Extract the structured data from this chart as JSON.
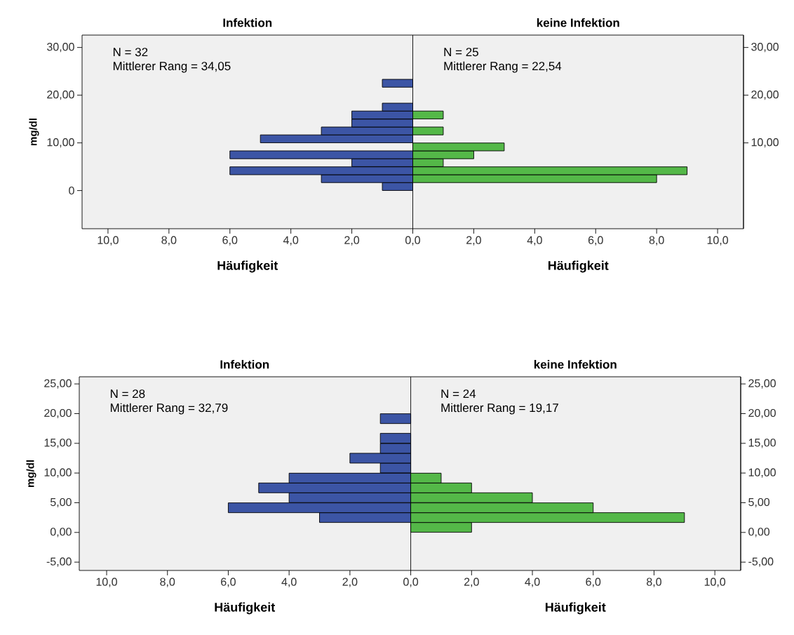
{
  "chart_data": [
    {
      "type": "bar",
      "orientation": "horizontal",
      "xlabel": "Häufigkeit",
      "ylabel": "mg/dl",
      "annotations": [
        "Infektion",
        "N = 32",
        "Mittlerer Rang = 34,05",
        "keine Infektion",
        "N = 25",
        "Mittlerer Rang = 22,54"
      ],
      "x": [
        0.85,
        2.5,
        4.15,
        5.85,
        7.5,
        9.15,
        10.85,
        12.5,
        14.15,
        15.85,
        17.5,
        19.15,
        20.85,
        22.5
      ],
      "series": [
        {
          "color": "#3c55a5",
          "values": [
            -1,
            -3,
            -6,
            -2,
            -6,
            0,
            -5,
            -3,
            -2,
            -2,
            -1,
            0,
            0,
            -1
          ]
        },
        {
          "color": "#54b848",
          "values": [
            0,
            8,
            9,
            1,
            2,
            3,
            0,
            1,
            0,
            1,
            0,
            0,
            0,
            0
          ]
        }
      ],
      "xlim": [
        -10.85,
        10.85
      ],
      "xticks": [
        {
          "value": -10,
          "label": "10,0"
        },
        {
          "value": -8,
          "label": "8,0"
        },
        {
          "value": -6,
          "label": "6,0"
        },
        {
          "value": -4,
          "label": "4,0"
        },
        {
          "value": -2,
          "label": "2,0"
        },
        {
          "value": 0,
          "label": "0,0"
        },
        {
          "value": 2,
          "label": "2,0"
        },
        {
          "value": 4,
          "label": "4,0"
        },
        {
          "value": 6,
          "label": "6,0"
        },
        {
          "value": 8,
          "label": "8,0"
        },
        {
          "value": 10,
          "label": "10,0"
        }
      ],
      "ylim": [
        -8,
        32.6
      ],
      "yticks": [
        {
          "value": 30,
          "label": "30,00"
        },
        {
          "value": 20,
          "label": "20,00"
        },
        {
          "value": 10,
          "label": "10,00"
        },
        {
          "value": 0,
          "label": "0"
        }
      ],
      "y2lim": [
        -8,
        32.6
      ],
      "y2ticks": [
        {
          "value": 30,
          "label": "30,00"
        },
        {
          "value": 20,
          "label": "20,00"
        },
        {
          "value": 10,
          "label": "10,00"
        }
      ]
    },
    {
      "type": "bar",
      "orientation": "horizontal",
      "xlabel": "Häufigkeit",
      "ylabel": "mg/dl",
      "annotations": [
        "Infektion",
        "N = 28",
        "Mittlerer Rang = 32,79",
        "keine Infektion",
        "N = 24",
        "Mittlerer Rang = 19,17"
      ],
      "x": [
        0.85,
        2.5,
        4.15,
        5.85,
        7.5,
        9.15,
        10.85,
        12.5,
        14.15,
        15.85,
        17.5,
        19.15
      ],
      "series": [
        {
          "color": "#3c55a5",
          "values": [
            0,
            -3,
            -6,
            -4,
            -5,
            -4,
            -1,
            -2,
            -1,
            -1,
            0,
            -1
          ]
        },
        {
          "color": "#54b848",
          "values": [
            2,
            9,
            6,
            4,
            2,
            1,
            0,
            0,
            0,
            0,
            0,
            0
          ]
        }
      ],
      "xlim": [
        -10.9,
        10.85
      ],
      "xticks": [
        {
          "value": -10,
          "label": "10,0"
        },
        {
          "value": -8,
          "label": "8,0"
        },
        {
          "value": -6,
          "label": "6,0"
        },
        {
          "value": -4,
          "label": "4,0"
        },
        {
          "value": -2,
          "label": "2,0"
        },
        {
          "value": 0,
          "label": "0,0"
        },
        {
          "value": 2,
          "label": "2,0"
        },
        {
          "value": 4,
          "label": "4,0"
        },
        {
          "value": 6,
          "label": "6,0"
        },
        {
          "value": 8,
          "label": "8,0"
        },
        {
          "value": 10,
          "label": "10,0"
        }
      ],
      "ylim": [
        -6.4,
        26.2
      ],
      "yticks": [
        {
          "value": 25,
          "label": "25,00"
        },
        {
          "value": 20,
          "label": "20,00"
        },
        {
          "value": 15,
          "label": "15,00"
        },
        {
          "value": 10,
          "label": "10,00"
        },
        {
          "value": 5,
          "label": "5,00"
        },
        {
          "value": 0,
          "label": "0,00"
        },
        {
          "value": -5,
          "label": "-5,00"
        }
      ],
      "y2lim": [
        -6.4,
        26.2
      ],
      "y2ticks": [
        {
          "value": 25,
          "label": "25,00"
        },
        {
          "value": 20,
          "label": "20,00"
        },
        {
          "value": 15,
          "label": "15,00"
        },
        {
          "value": 10,
          "label": "10,00"
        },
        {
          "value": 5,
          "label": "5,00"
        },
        {
          "value": 0,
          "label": "0,00"
        },
        {
          "value": -5,
          "label": "-5,00"
        }
      ]
    }
  ]
}
